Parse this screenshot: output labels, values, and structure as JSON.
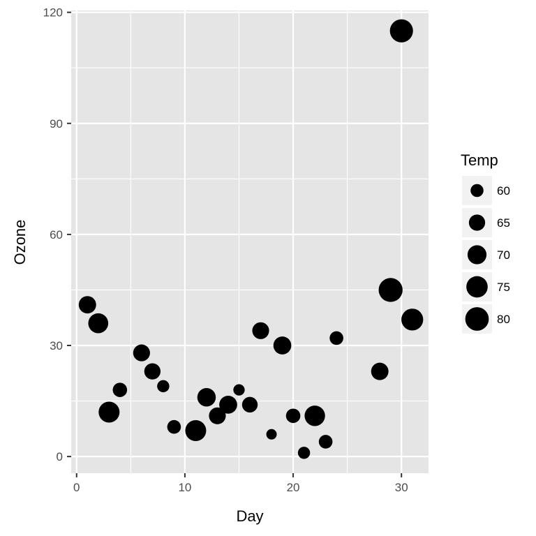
{
  "chart_data": {
    "type": "scatter",
    "title": "",
    "xlabel": "Day",
    "ylabel": "Ozone",
    "xlim": [
      -0.5,
      32.5
    ],
    "ylim": [
      -4.5,
      120.5
    ],
    "x_ticks": [
      0,
      10,
      20,
      30
    ],
    "y_ticks": [
      0,
      30,
      60,
      90,
      120
    ],
    "x_tick_labels": [
      "0",
      "10",
      "20",
      "30"
    ],
    "y_tick_labels": [
      "0",
      "30",
      "60",
      "90",
      "120"
    ],
    "grid": true,
    "panel_background": "#e5e5e5",
    "grid_color": "#ffffff",
    "point_color": "#000000",
    "size_variable": "Temp",
    "size_range": [
      57,
      84
    ],
    "legend": {
      "title": "Temp",
      "position": "right",
      "entries": [
        60,
        65,
        70,
        75,
        80
      ],
      "labels": [
        "60",
        "65",
        "70",
        "75",
        "80"
      ]
    },
    "points": [
      {
        "x": 1,
        "y": 41,
        "temp": 67
      },
      {
        "x": 2,
        "y": 36,
        "temp": 72
      },
      {
        "x": 3,
        "y": 12,
        "temp": 74
      },
      {
        "x": 4,
        "y": 18,
        "temp": 62
      },
      {
        "x": 6,
        "y": 28,
        "temp": 66
      },
      {
        "x": 7,
        "y": 23,
        "temp": 65
      },
      {
        "x": 8,
        "y": 19,
        "temp": 59
      },
      {
        "x": 9,
        "y": 8,
        "temp": 61
      },
      {
        "x": 11,
        "y": 7,
        "temp": 74
      },
      {
        "x": 12,
        "y": 16,
        "temp": 69
      },
      {
        "x": 13,
        "y": 11,
        "temp": 66
      },
      {
        "x": 14,
        "y": 14,
        "temp": 68
      },
      {
        "x": 15,
        "y": 18,
        "temp": 58
      },
      {
        "x": 16,
        "y": 14,
        "temp": 64
      },
      {
        "x": 17,
        "y": 34,
        "temp": 66
      },
      {
        "x": 18,
        "y": 6,
        "temp": 57
      },
      {
        "x": 19,
        "y": 30,
        "temp": 68
      },
      {
        "x": 20,
        "y": 11,
        "temp": 62
      },
      {
        "x": 21,
        "y": 1,
        "temp": 59
      },
      {
        "x": 22,
        "y": 11,
        "temp": 73
      },
      {
        "x": 23,
        "y": 4,
        "temp": 61
      },
      {
        "x": 24,
        "y": 32,
        "temp": 61
      },
      {
        "x": 28,
        "y": 23,
        "temp": 67
      },
      {
        "x": 29,
        "y": 45,
        "temp": 81
      },
      {
        "x": 30,
        "y": 115,
        "temp": 79
      },
      {
        "x": 31,
        "y": 37,
        "temp": 76
      }
    ]
  }
}
